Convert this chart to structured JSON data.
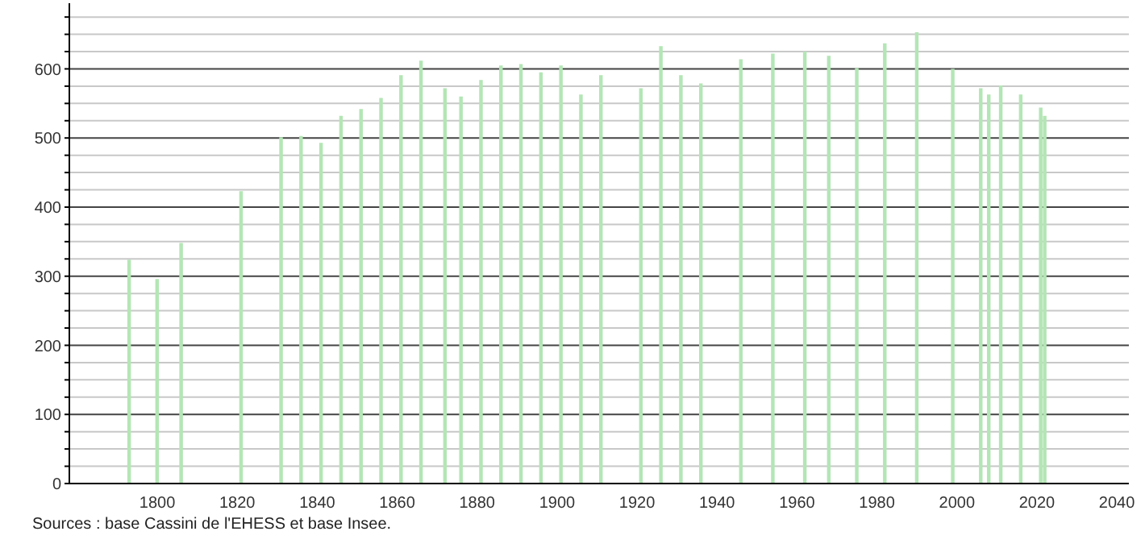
{
  "chart_data": {
    "type": "bar",
    "x": [
      1793,
      1800,
      1806,
      1821,
      1831,
      1836,
      1841,
      1846,
      1851,
      1856,
      1861,
      1866,
      1872,
      1876,
      1881,
      1886,
      1891,
      1896,
      1901,
      1906,
      1911,
      1921,
      1926,
      1931,
      1936,
      1946,
      1954,
      1962,
      1968,
      1975,
      1982,
      1990,
      1999,
      2006,
      2008,
      2011,
      2016,
      2021,
      2022
    ],
    "series": [
      {
        "color": "#b3e6b5",
        "values": [
          324,
          296,
          348,
          423,
          501,
          503,
          493,
          532,
          542,
          558,
          591,
          612,
          572,
          560,
          584,
          605,
          607,
          595,
          605,
          563,
          591,
          572,
          633,
          591,
          579,
          614,
          622,
          625,
          619,
          601,
          637,
          653,
          600,
          572,
          563,
          576,
          563,
          544,
          532
        ]
      }
    ],
    "xlim": [
      1778,
      2043
    ],
    "xticks": [
      1800,
      1820,
      1840,
      1860,
      1880,
      1900,
      1920,
      1940,
      1960,
      1980,
      2000,
      2020,
      2040
    ],
    "ylim": [
      0,
      695
    ],
    "yticks": [
      0,
      {
        "value": 25,
        "label": null
      },
      {
        "value": 50,
        "label": null
      },
      {
        "value": 75,
        "label": null
      },
      100,
      {
        "value": 125,
        "label": null
      },
      {
        "value": 150,
        "label": null
      },
      {
        "value": 175,
        "label": null
      },
      200,
      {
        "value": 225,
        "label": null
      },
      {
        "value": 250,
        "label": null
      },
      {
        "value": 275,
        "label": null
      },
      300,
      {
        "value": 325,
        "label": null
      },
      {
        "value": 350,
        "label": null
      },
      {
        "value": 375,
        "label": null
      },
      400,
      {
        "value": 425,
        "label": null
      },
      {
        "value": 450,
        "label": null
      },
      {
        "value": 475,
        "label": null
      },
      500,
      {
        "value": 525,
        "label": null
      },
      {
        "value": 550,
        "label": null
      },
      {
        "value": 575,
        "label": null
      },
      600,
      {
        "value": 625,
        "label": null
      },
      {
        "value": 650,
        "label": null
      },
      {
        "value": 675,
        "label": null
      }
    ],
    "grid": "y",
    "annotations": [
      "Sources : base Cassini de l'EHESS et base Insee."
    ]
  }
}
